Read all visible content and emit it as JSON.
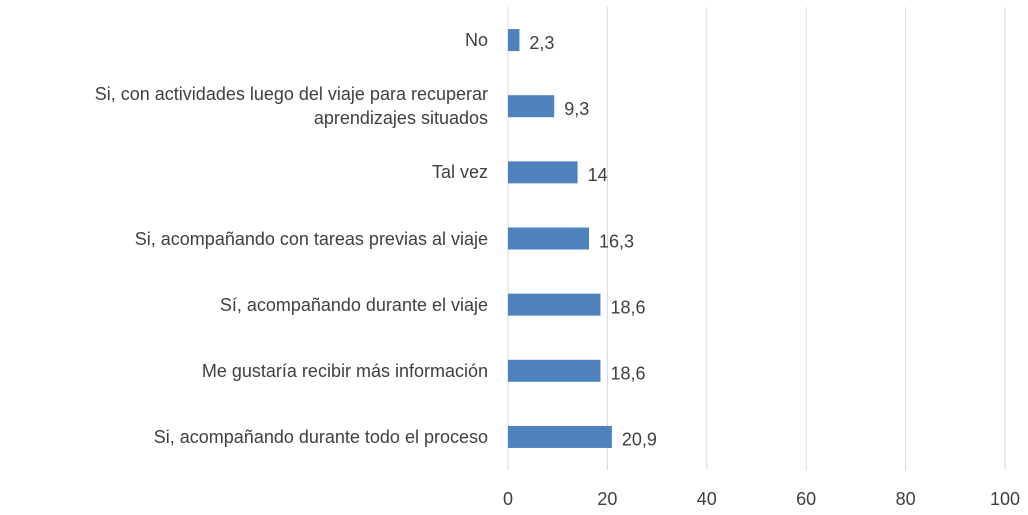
{
  "chart_data": {
    "type": "barh",
    "categories": [
      "No",
      "Si, con actividades luego del viaje para recuperar aprendizajes situados",
      "Tal vez",
      "Si, acompañando con tareas previas al viaje",
      "Sí, acompañando durante el viaje",
      "Me gustaría recibir más información",
      "Si, acompañando durante todo el proceso"
    ],
    "values": [
      2.3,
      9.3,
      14,
      16.3,
      18.6,
      18.6,
      20.9
    ],
    "value_labels": [
      "2,3",
      "9,3",
      "14",
      "16,3",
      "18,6",
      "18,6",
      "20,9"
    ],
    "color": "#4f81bd",
    "xlim": [
      0,
      100
    ],
    "xticks": [
      0,
      20,
      40,
      60,
      80,
      100
    ],
    "grid": true
  }
}
